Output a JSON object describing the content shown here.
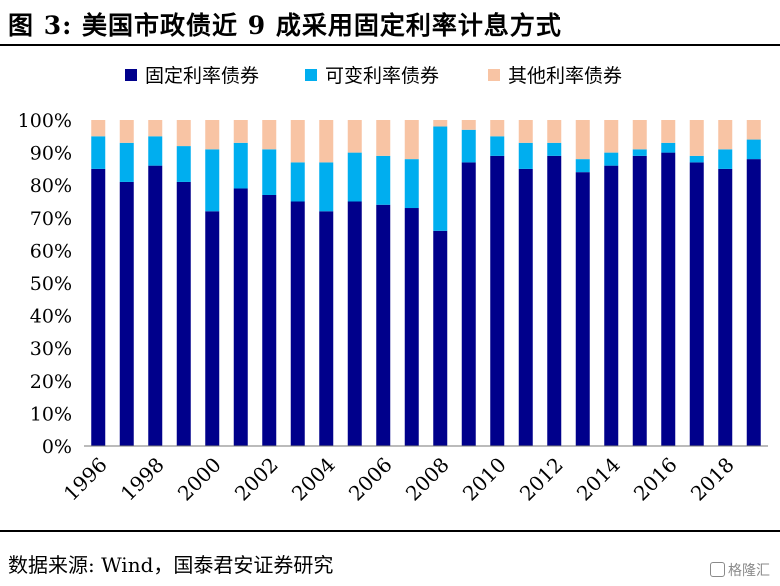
{
  "header": {
    "title": "图 3:  美国市政债近 9 成采用固定利率计息方式"
  },
  "footer": {
    "source": "数据来源:  Wind，国泰君安证券研究",
    "watermark": "格隆汇"
  },
  "colors": {
    "fixed": "#00008B",
    "variable": "#00AEEF",
    "other": "#F8C4A4"
  },
  "chart_data": {
    "type": "bar",
    "stacked": true,
    "title": "",
    "xlabel": "",
    "ylabel": "",
    "ylim": [
      0,
      100
    ],
    "yticks": [
      "0%",
      "10%",
      "20%",
      "30%",
      "40%",
      "50%",
      "60%",
      "70%",
      "80%",
      "90%",
      "100%"
    ],
    "legend_position": "top",
    "categories": [
      "1996",
      "1997",
      "1998",
      "1999",
      "2000",
      "2001",
      "2002",
      "2003",
      "2004",
      "2005",
      "2006",
      "2007",
      "2008",
      "2009",
      "2010",
      "2011",
      "2012",
      "2013",
      "2014",
      "2015",
      "2016",
      "2017",
      "2018",
      "2019"
    ],
    "xtick_labels": [
      "1996",
      "1998",
      "2000",
      "2002",
      "2004",
      "2006",
      "2008",
      "2010",
      "2012",
      "2014",
      "2016",
      "2018"
    ],
    "series": [
      {
        "name": "固定利率债券",
        "color": "#00008B",
        "values": [
          85,
          81,
          86,
          81,
          72,
          79,
          77,
          75,
          72,
          75,
          74,
          73,
          66,
          87,
          89,
          85,
          89,
          84,
          86,
          89,
          90,
          87,
          85,
          88
        ]
      },
      {
        "name": "可变利率债券",
        "color": "#00AEEF",
        "values": [
          10,
          12,
          9,
          11,
          19,
          14,
          14,
          12,
          15,
          15,
          15,
          15,
          32,
          10,
          6,
          8,
          4,
          4,
          4,
          2,
          3,
          2,
          6,
          6
        ]
      },
      {
        "name": "其他利率债券",
        "color": "#F8C4A4",
        "values": [
          5,
          7,
          5,
          8,
          9,
          7,
          9,
          13,
          13,
          10,
          11,
          12,
          2,
          3,
          5,
          7,
          7,
          12,
          10,
          9,
          7,
          11,
          9,
          6
        ]
      }
    ]
  }
}
